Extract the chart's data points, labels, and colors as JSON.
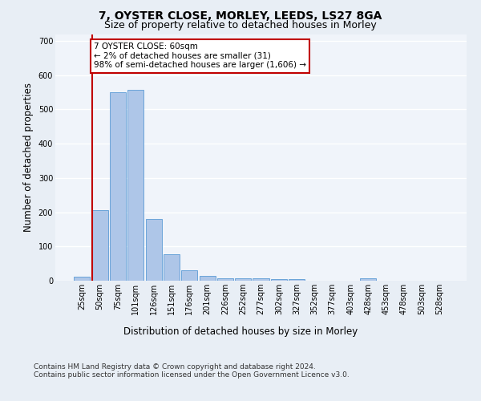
{
  "title1": "7, OYSTER CLOSE, MORLEY, LEEDS, LS27 8GA",
  "title2": "Size of property relative to detached houses in Morley",
  "xlabel": "Distribution of detached houses by size in Morley",
  "ylabel": "Number of detached properties",
  "categories": [
    "25sqm",
    "50sqm",
    "75sqm",
    "101sqm",
    "126sqm",
    "151sqm",
    "176sqm",
    "201sqm",
    "226sqm",
    "252sqm",
    "277sqm",
    "302sqm",
    "327sqm",
    "352sqm",
    "377sqm",
    "403sqm",
    "428sqm",
    "453sqm",
    "478sqm",
    "503sqm",
    "528sqm"
  ],
  "values": [
    12,
    205,
    550,
    557,
    180,
    78,
    30,
    13,
    7,
    6,
    6,
    5,
    5,
    0,
    0,
    0,
    8,
    0,
    0,
    0,
    0
  ],
  "bar_color": "#aec6e8",
  "bar_edge_color": "#5b9bd5",
  "vline_x_index": 1,
  "vline_color": "#c00000",
  "annotation_text": "7 OYSTER CLOSE: 60sqm\n← 2% of detached houses are smaller (31)\n98% of semi-detached houses are larger (1,606) →",
  "annotation_box_color": "#ffffff",
  "annotation_border_color": "#c00000",
  "ylim": [
    0,
    720
  ],
  "yticks": [
    0,
    100,
    200,
    300,
    400,
    500,
    600,
    700
  ],
  "footer_text": "Contains HM Land Registry data © Crown copyright and database right 2024.\nContains public sector information licensed under the Open Government Licence v3.0.",
  "bg_color": "#e8eef5",
  "plot_bg_color": "#f0f4fa",
  "grid_color": "#ffffff",
  "title_fontsize": 10,
  "subtitle_fontsize": 9,
  "tick_fontsize": 7,
  "label_fontsize": 8.5,
  "footer_fontsize": 6.5
}
